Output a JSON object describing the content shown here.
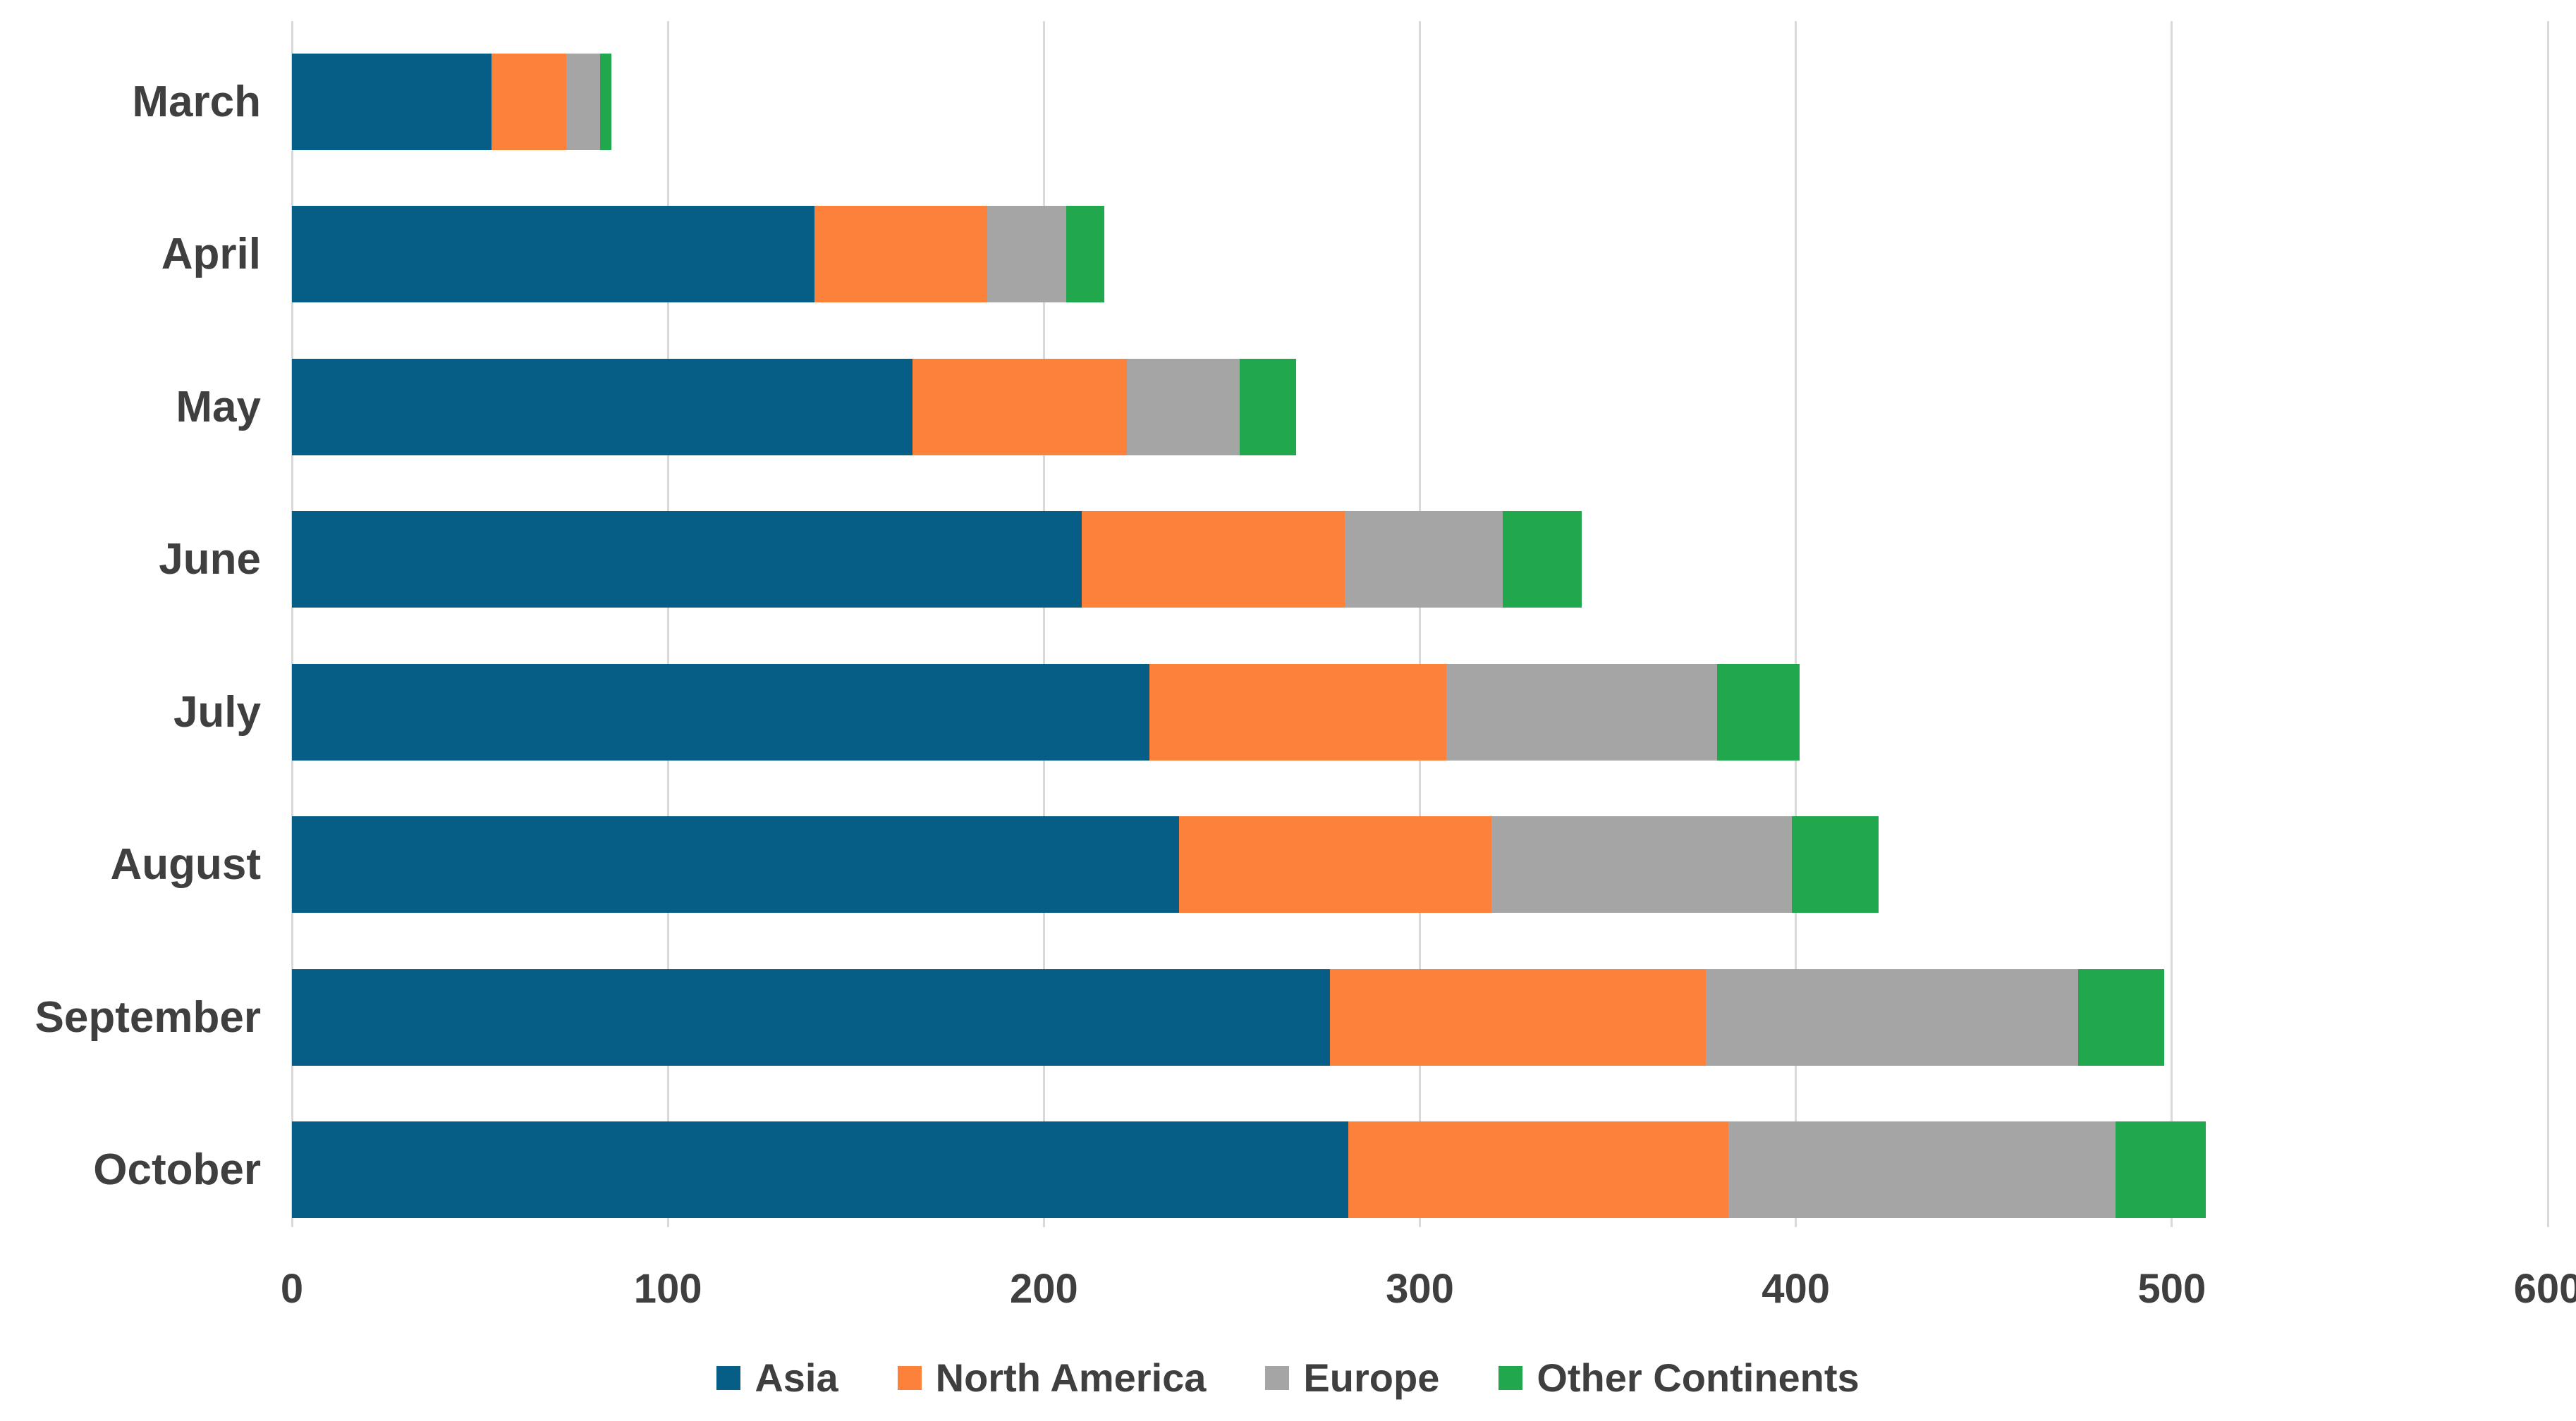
{
  "chart_data": {
    "type": "bar",
    "orientation": "horizontal",
    "stacked": true,
    "title": "",
    "xlabel": "",
    "ylabel": "",
    "categories": [
      "March",
      "April",
      "May",
      "June",
      "July",
      "August",
      "September",
      "October"
    ],
    "series": [
      {
        "name": "Asia",
        "color": "#065e86",
        "values": [
          53,
          139,
          165,
          210,
          228,
          236,
          276,
          281
        ]
      },
      {
        "name": "North America",
        "color": "#fc813a",
        "values": [
          20,
          46,
          57,
          70,
          79,
          83,
          100,
          101
        ]
      },
      {
        "name": "Europe",
        "color": "#a5a5a5",
        "values": [
          9,
          21,
          30,
          42,
          72,
          80,
          99,
          103
        ]
      },
      {
        "name": "Other Continents",
        "color": "#22a84c",
        "values": [
          3,
          10,
          15,
          21,
          22,
          23,
          23,
          24
        ]
      }
    ],
    "totals": [
      85,
      216,
      267,
      343,
      401,
      422,
      498,
      509
    ],
    "x_ticks": [
      "0",
      "100",
      "200",
      "300",
      "400",
      "500",
      "600"
    ],
    "xlim": [
      0,
      600
    ],
    "grid": "vertical-only",
    "gridline_color": "#d9d9d9",
    "text_color": "#3f3f3f",
    "background_color": "#ffffff",
    "legend_position": "bottom-center"
  }
}
